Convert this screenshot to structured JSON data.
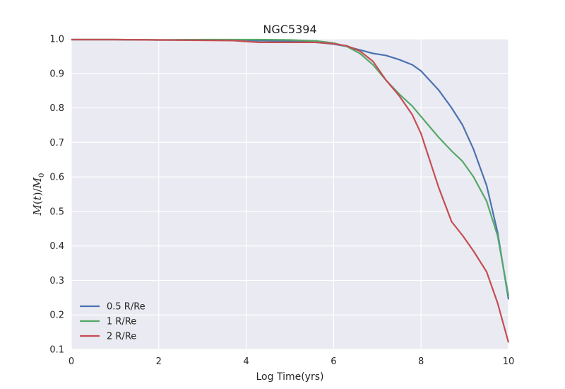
{
  "chart_data": {
    "type": "line",
    "title": "NGC5394",
    "xlabel": "Log Time(yrs)",
    "ylabel_parts": [
      "M",
      "(",
      "t",
      ")/",
      "M",
      "0"
    ],
    "xlim": [
      0,
      10
    ],
    "ylim": [
      0.1,
      1.0
    ],
    "xticks": [
      0,
      2,
      4,
      6,
      8,
      10
    ],
    "yticks": [
      0.1,
      0.2,
      0.3,
      0.4,
      0.5,
      0.6,
      0.7,
      0.8,
      0.9,
      1.0
    ],
    "xtick_labels": [
      "0",
      "2",
      "4",
      "6",
      "8",
      "10"
    ],
    "ytick_labels": [
      "0.1",
      "0.2",
      "0.3",
      "0.4",
      "0.5",
      "0.6",
      "0.7",
      "0.8",
      "0.9",
      "1.0"
    ],
    "grid": true,
    "legend_position": "lower-left",
    "series": [
      {
        "name": "0.5 R/Re",
        "color": "#4c72b0",
        "x": [
          0,
          1,
          2,
          3,
          3.7,
          4.3,
          5,
          5.6,
          6.0,
          6.3,
          6.6,
          6.9,
          7.2,
          7.5,
          7.8,
          8.0,
          8.4,
          8.7,
          8.95,
          9.2,
          9.5,
          9.75,
          10.0
        ],
        "y": [
          0.998,
          0.998,
          0.997,
          0.997,
          0.996,
          0.995,
          0.993,
          0.99,
          0.985,
          0.978,
          0.968,
          0.958,
          0.952,
          0.94,
          0.925,
          0.907,
          0.852,
          0.8,
          0.75,
          0.68,
          0.575,
          0.44,
          0.245
        ]
      },
      {
        "name": "1 R/Re",
        "color": "#55a868",
        "x": [
          0,
          1,
          2,
          3,
          3.7,
          4.3,
          5,
          5.6,
          6.0,
          6.3,
          6.6,
          6.9,
          7.2,
          7.5,
          7.8,
          8.0,
          8.4,
          8.7,
          8.95,
          9.2,
          9.5,
          9.75,
          10.0
        ],
        "y": [
          0.998,
          0.998,
          0.997,
          0.998,
          0.998,
          0.998,
          0.997,
          0.994,
          0.988,
          0.978,
          0.958,
          0.925,
          0.88,
          0.84,
          0.805,
          0.775,
          0.715,
          0.675,
          0.645,
          0.6,
          0.53,
          0.43,
          0.255
        ]
      },
      {
        "name": "2 R/Re",
        "color": "#c44e52",
        "x": [
          0,
          1,
          2,
          3,
          3.7,
          4.3,
          5,
          5.6,
          6.0,
          6.3,
          6.6,
          6.9,
          7.2,
          7.5,
          7.8,
          8.0,
          8.4,
          8.7,
          8.95,
          9.2,
          9.5,
          9.75,
          10.0
        ],
        "y": [
          0.998,
          0.998,
          0.997,
          0.996,
          0.995,
          0.99,
          0.99,
          0.99,
          0.986,
          0.98,
          0.965,
          0.935,
          0.88,
          0.835,
          0.78,
          0.725,
          0.57,
          0.47,
          0.43,
          0.385,
          0.325,
          0.235,
          0.12
        ]
      }
    ]
  }
}
